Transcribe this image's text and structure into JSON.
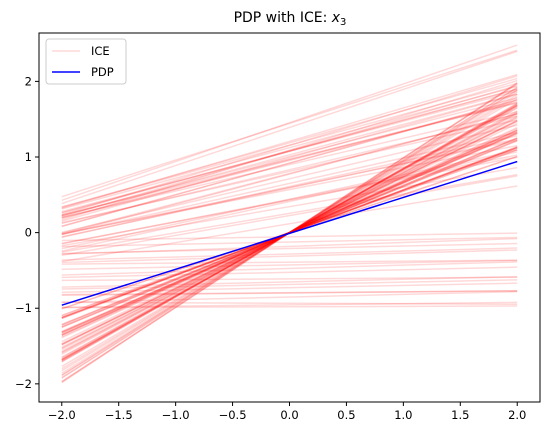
{
  "chart_data": {
    "type": "line",
    "title": "PDP with ICE: ",
    "title_var": "x",
    "title_sub": "3",
    "xlabel": "",
    "ylabel": "",
    "xlim": [
      -2.2,
      2.2
    ],
    "ylim": [
      -2.24,
      2.64
    ],
    "grid": false,
    "legend_position": "top-left",
    "x_ticks": [
      -2.0,
      -1.5,
      -1.0,
      -0.5,
      0.0,
      0.5,
      1.0,
      1.5,
      2.0
    ],
    "x_tick_labels": [
      "−2.0",
      "−1.5",
      "−1.0",
      "−0.5",
      "0.0",
      "0.5",
      "1.0",
      "1.5",
      "2.0"
    ],
    "y_ticks": [
      -2,
      -1,
      0,
      1,
      2
    ],
    "y_tick_labels": [
      "−2",
      "−1",
      "0",
      "1",
      "2"
    ],
    "colors": {
      "ice": "#ff0000",
      "pdp": "#0000ff",
      "axes": "#000000"
    },
    "series": [
      {
        "name": "ICE",
        "style": "faint red lines",
        "note_group_shift_up": {
          "start_y_range": [
            -0.4,
            0.5
          ],
          "end_y_range": [
            0.55,
            2.48
          ],
          "count": 40
        },
        "note_group_shift_down": {
          "start_y_range": [
            -1.0,
            -0.1
          ],
          "end_y_range": [
            -0.97,
            0.0
          ],
          "count": 20
        },
        "note_group_through_origin": {
          "start_y_range": [
            -1.98,
            -1.0
          ],
          "end_y_range": [
            1.0,
            2.0
          ],
          "count": 60
        }
      },
      {
        "name": "PDP",
        "x": [
          -2.0,
          2.0
        ],
        "y": [
          -0.96,
          0.94
        ]
      }
    ]
  }
}
